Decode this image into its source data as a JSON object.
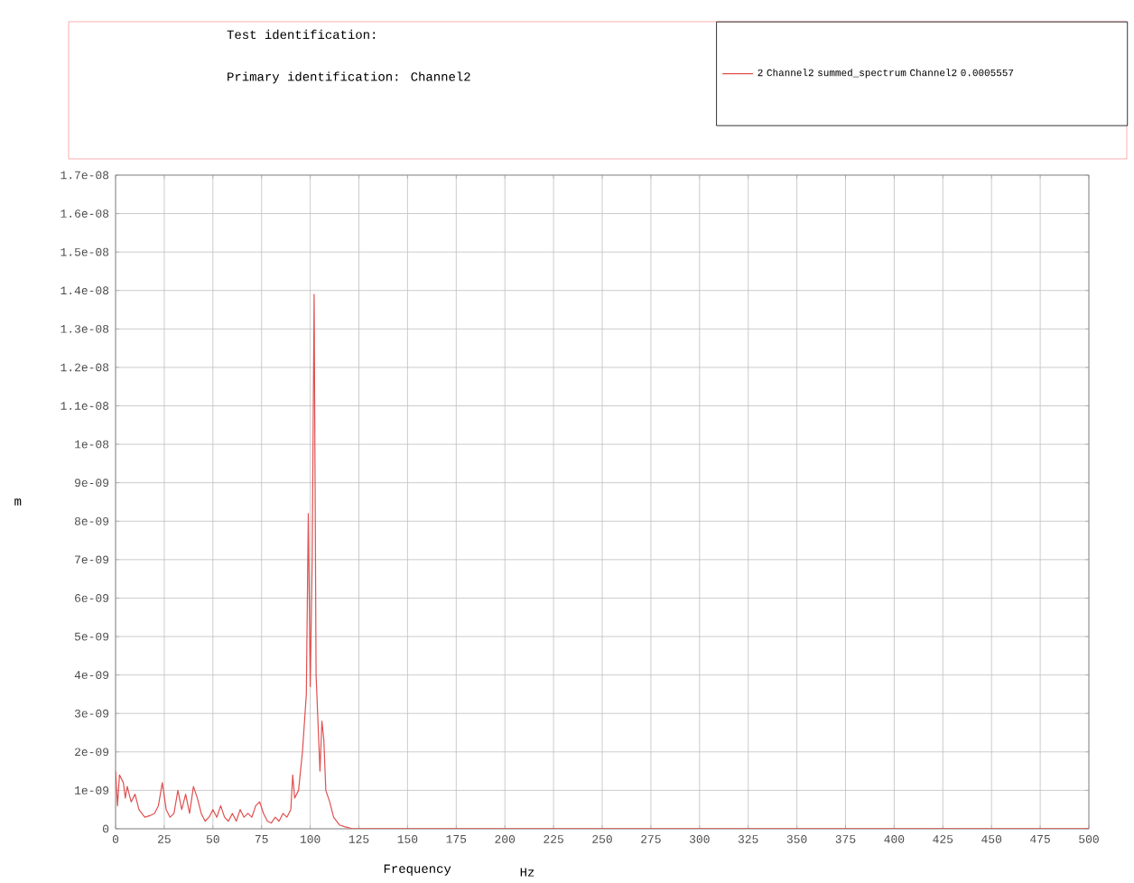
{
  "chart_data": {
    "type": "line",
    "xlabel": "Frequency",
    "ylabel": "m",
    "annotations": [
      "Test identification:",
      "Primary identification: Channel2",
      "Hz"
    ],
    "series": [
      {
        "name": "2 Channel2 summed_spectrum Channel2 0.0005557",
        "color": "#e05050",
        "x": [
          0,
          1,
          2,
          4,
          5,
          6,
          8,
          10,
          12,
          15,
          18,
          20,
          22,
          24,
          26,
          28,
          30,
          32,
          34,
          36,
          38,
          40,
          42,
          44,
          46,
          48,
          50,
          52,
          54,
          56,
          58,
          60,
          62,
          64,
          66,
          68,
          70,
          72,
          74,
          76,
          78,
          80,
          82,
          84,
          86,
          88,
          90,
          91,
          92,
          94,
          96,
          98,
          99,
          100,
          101,
          102,
          103,
          105,
          106,
          107,
          108,
          110,
          112,
          115,
          118,
          122,
          300,
          500
        ],
        "values": [
          1.5e-09,
          6e-10,
          1.4e-09,
          1.2e-09,
          8e-10,
          1.1e-09,
          7e-10,
          9e-10,
          5e-10,
          3e-10,
          3.5e-10,
          4e-10,
          6e-10,
          1.2e-09,
          5e-10,
          3e-10,
          4e-10,
          1e-09,
          5e-10,
          9e-10,
          4e-10,
          1.1e-09,
          8e-10,
          4e-10,
          2e-10,
          3e-10,
          5e-10,
          3e-10,
          6e-10,
          3e-10,
          2e-10,
          4e-10,
          2e-10,
          5e-10,
          3e-10,
          4e-10,
          3e-10,
          6e-10,
          7e-10,
          4e-10,
          2e-10,
          1.5e-10,
          3e-10,
          2e-10,
          4e-10,
          3e-10,
          5e-10,
          1.4e-09,
          8e-10,
          1e-09,
          2e-09,
          3.5e-09,
          8.2e-09,
          3.7e-09,
          7e-09,
          1.39e-08,
          4e-09,
          1.5e-09,
          2.8e-09,
          2.3e-09,
          1e-09,
          7e-10,
          3e-10,
          1e-10,
          5e-11,
          0,
          0,
          0
        ]
      }
    ],
    "xlim": [
      0,
      500
    ],
    "ylim": [
      0,
      1.7e-08
    ],
    "xticks": [
      0,
      25,
      50,
      75,
      100,
      125,
      150,
      175,
      200,
      225,
      250,
      275,
      300,
      325,
      350,
      375,
      400,
      425,
      450,
      475,
      500
    ],
    "yticks": [
      {
        "value": 0,
        "label": "0"
      },
      {
        "value": 1e-09,
        "label": "1e-09"
      },
      {
        "value": 2e-09,
        "label": "2e-09"
      },
      {
        "value": 3e-09,
        "label": "3e-09"
      },
      {
        "value": 4e-09,
        "label": "4e-09"
      },
      {
        "value": 5e-09,
        "label": "5e-09"
      },
      {
        "value": 6e-09,
        "label": "6e-09"
      },
      {
        "value": 7e-09,
        "label": "7e-09"
      },
      {
        "value": 8e-09,
        "label": "8e-09"
      },
      {
        "value": 9e-09,
        "label": "9e-09"
      },
      {
        "value": 1e-08,
        "label": "1e-08"
      },
      {
        "value": 1.1e-08,
        "label": "1.1e-08"
      },
      {
        "value": 1.2e-08,
        "label": "1.2e-08"
      },
      {
        "value": 1.3e-08,
        "label": "1.3e-08"
      },
      {
        "value": 1.4e-08,
        "label": "1.4e-08"
      },
      {
        "value": 1.5e-08,
        "label": "1.5e-08"
      },
      {
        "value": 1.6e-08,
        "label": "1.6e-08"
      },
      {
        "value": 1.7e-08,
        "label": "1.7e-08"
      }
    ],
    "grid": true,
    "legend": "top right",
    "marker": "none",
    "line_style": "solid"
  }
}
